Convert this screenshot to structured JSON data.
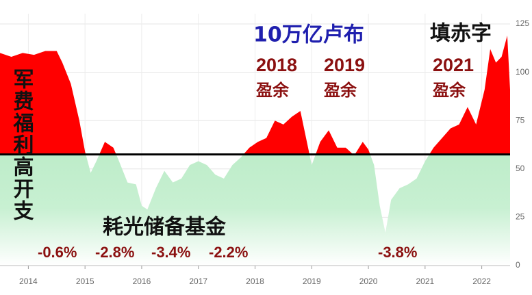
{
  "chart_data": {
    "type": "area",
    "x": [
      2013.5,
      2013.7,
      2013.9,
      2014.1,
      2014.3,
      2014.5,
      2014.6,
      2014.75,
      2014.9,
      2015.0,
      2015.1,
      2015.2,
      2015.35,
      2015.5,
      2015.6,
      2015.75,
      2015.9,
      2016.0,
      2016.1,
      2016.25,
      2016.4,
      2016.55,
      2016.7,
      2016.85,
      2017.0,
      2017.15,
      2017.3,
      2017.45,
      2017.6,
      2017.75,
      2017.9,
      2018.05,
      2018.2,
      2018.35,
      2018.5,
      2018.65,
      2018.8,
      2018.9,
      2019.0,
      2019.15,
      2019.3,
      2019.45,
      2019.6,
      2019.75,
      2019.9,
      2020.0,
      2020.1,
      2020.2,
      2020.3,
      2020.4,
      2020.55,
      2020.7,
      2020.85,
      2021.0,
      2021.15,
      2021.3,
      2021.45,
      2021.6,
      2021.75,
      2021.9,
      2022.05,
      2022.15,
      2022.25,
      2022.35,
      2022.45,
      2022.5
    ],
    "values": [
      110,
      108,
      110,
      109,
      111,
      111,
      105,
      94,
      75,
      59,
      48,
      54,
      64,
      61,
      54,
      43,
      42,
      31,
      29,
      40,
      49,
      43,
      45,
      52,
      54,
      52,
      47,
      45,
      52,
      56,
      61,
      64,
      66,
      75,
      73,
      77,
      80,
      66,
      52,
      64,
      70,
      61,
      61,
      57,
      64,
      60,
      52,
      31,
      17,
      34,
      40,
      42,
      45,
      54,
      61,
      66,
      71,
      73,
      82,
      73,
      91,
      112,
      105,
      108,
      119,
      91
    ],
    "threshold": 57.5,
    "above_color": "#ff0000",
    "below_color": "#a6e4b6",
    "xlim": [
      2013.5,
      2022.5
    ],
    "xticks": [
      2014,
      2015,
      2016,
      2017,
      2018,
      2019,
      2020,
      2021,
      2022
    ],
    "ylim": [
      0,
      125
    ],
    "yticks": [
      0,
      25,
      50,
      75,
      100,
      125
    ],
    "grid": true,
    "annotations": [
      "10万亿卢布",
      "填赤字",
      "2018",
      "盈余",
      "2019",
      "盈余",
      "2021",
      "盈余",
      "军费福利高开支",
      "耗光储备基金",
      "-0.6%",
      "-2.8%",
      "-3.4%",
      "-2.2%",
      "-3.8%"
    ]
  }
}
